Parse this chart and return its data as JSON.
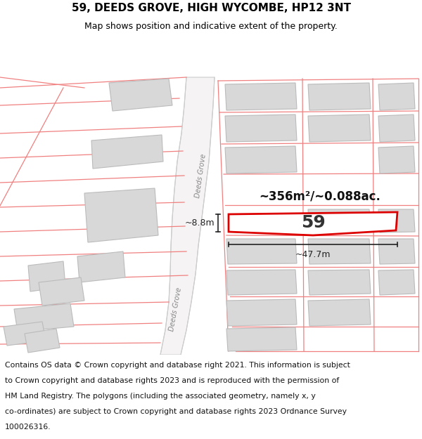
{
  "title": "59, DEEDS GROVE, HIGH WYCOMBE, HP12 3NT",
  "subtitle": "Map shows position and indicative extent of the property.",
  "footer_lines": [
    "Contains OS data © Crown copyright and database right 2021. This information is subject",
    "to Crown copyright and database rights 2023 and is reproduced with the permission of",
    "HM Land Registry. The polygons (including the associated geometry, namely x, y",
    "co-ordinates) are subject to Crown copyright and database rights 2023 Ordnance Survey",
    "100026316."
  ],
  "area_text": "~356m²/~0.088ac.",
  "property_number": "59",
  "dim_width": "~47.7m",
  "dim_height": "~8.8m",
  "map_bg": "#ffffff",
  "building_fill": "#d8d8d8",
  "building_stroke": "#bbbbbb",
  "highlight_fill": "#ffffff",
  "highlight_stroke": "#dd0000",
  "road_fill": "#f0eeee",
  "road_stroke": "#cccccc",
  "red_line_color": "#f08080",
  "street_label_color": "#888888",
  "street_label": "Deeds Grove",
  "title_fontsize": 11,
  "subtitle_fontsize": 9,
  "footer_fontsize": 7.8,
  "annotation_color": "#222222"
}
